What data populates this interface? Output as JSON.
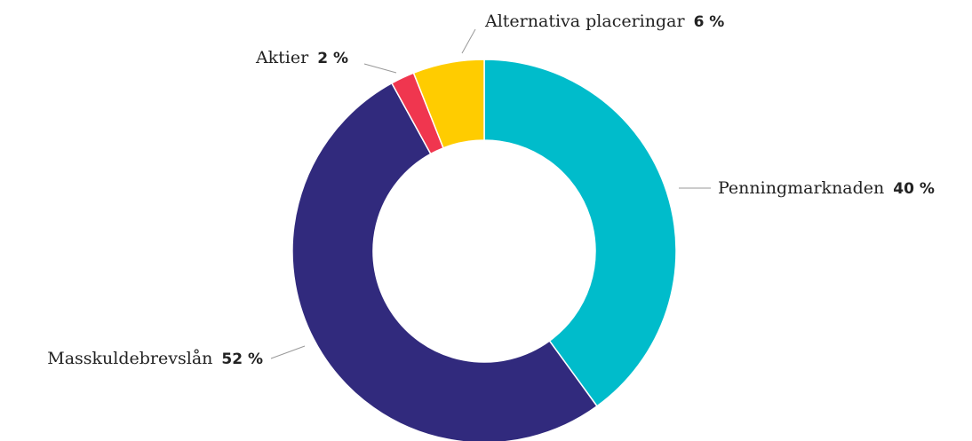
{
  "chart_data": {
    "type": "donut",
    "categories": [
      "Penningmarknaden",
      "Masskuldebrevslån",
      "Aktier",
      "Alternativa placeringar"
    ],
    "values": [
      40,
      52,
      2,
      6
    ],
    "value_labels": [
      "40 %",
      "52 %",
      "2 %",
      "6 %"
    ],
    "colors": [
      "#00bccb",
      "#312a7d",
      "#f0364f",
      "#ffcc00"
    ]
  }
}
